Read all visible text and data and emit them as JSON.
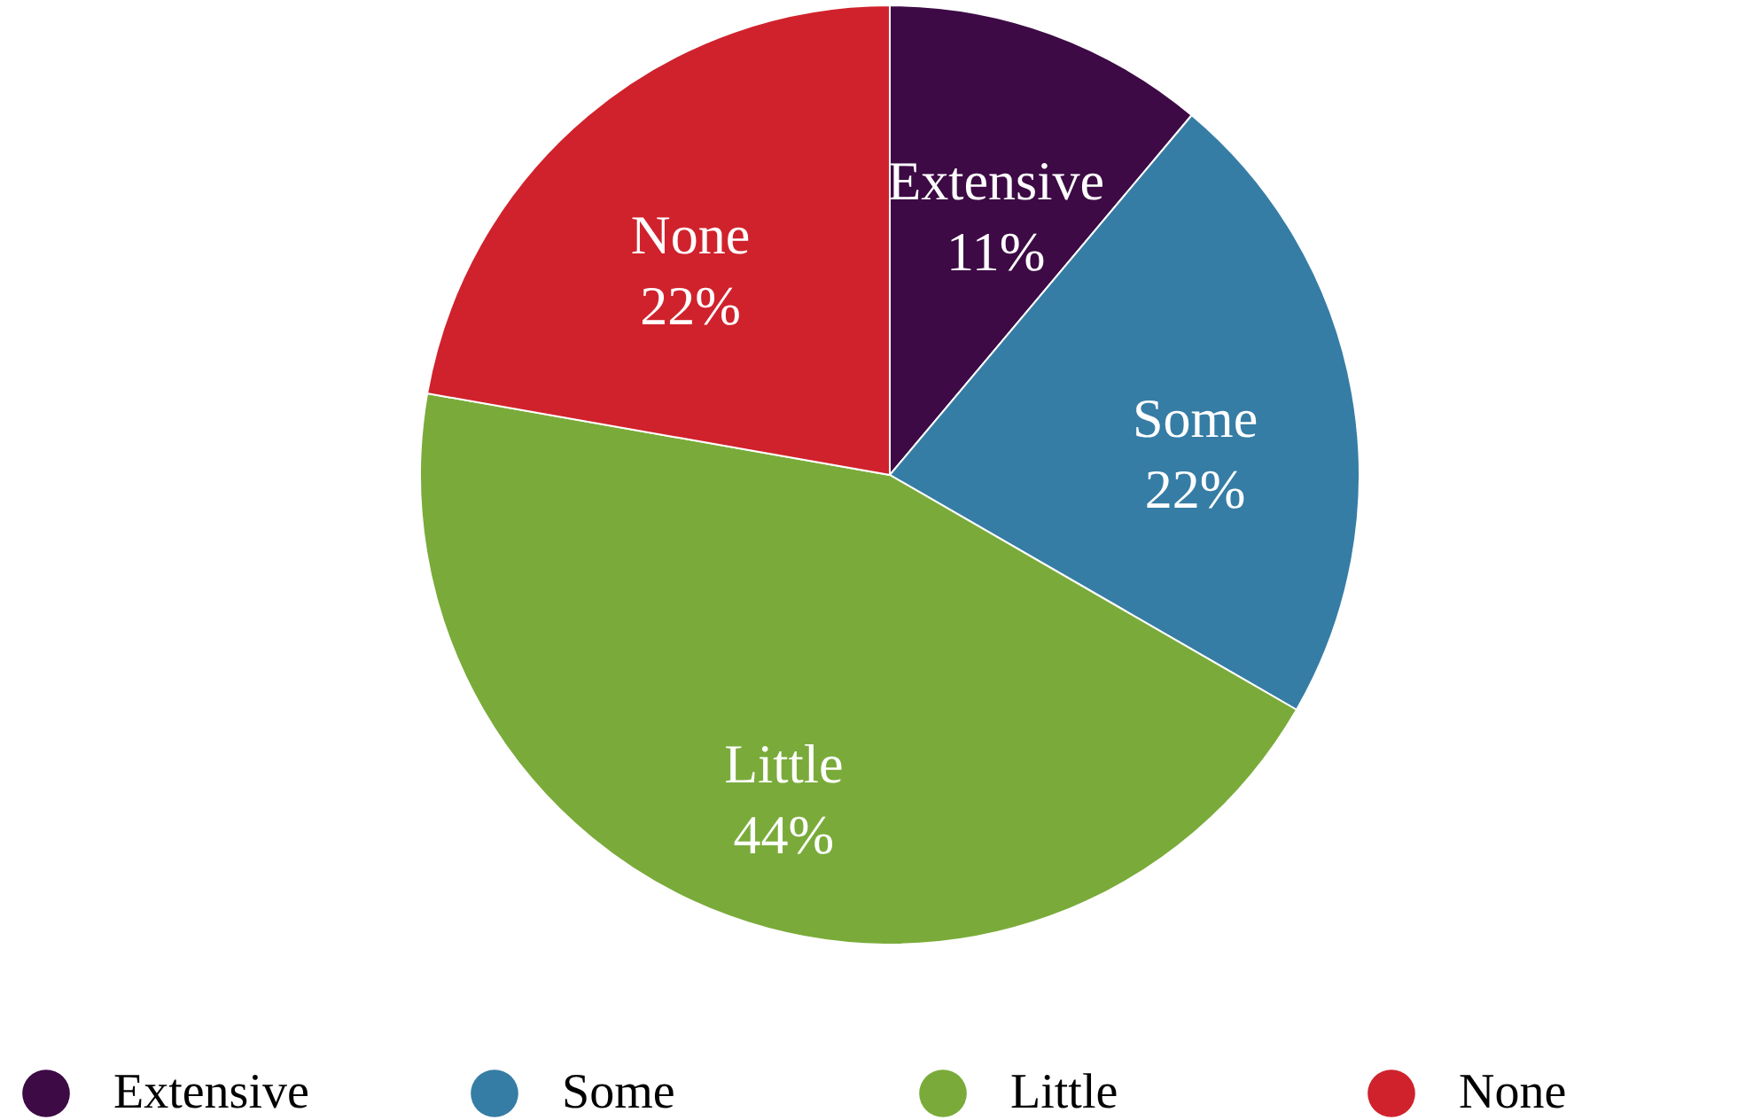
{
  "chart_data": {
    "type": "pie",
    "categories": [
      "Extensive",
      "Some",
      "Little",
      "None"
    ],
    "values": [
      11,
      22,
      44,
      22
    ],
    "value_labels": [
      "11%",
      "22%",
      "44%",
      "22%"
    ],
    "colors": [
      "#3d0a45",
      "#367da5",
      "#7aab3a",
      "#d0222c"
    ],
    "legend": "bottom"
  }
}
